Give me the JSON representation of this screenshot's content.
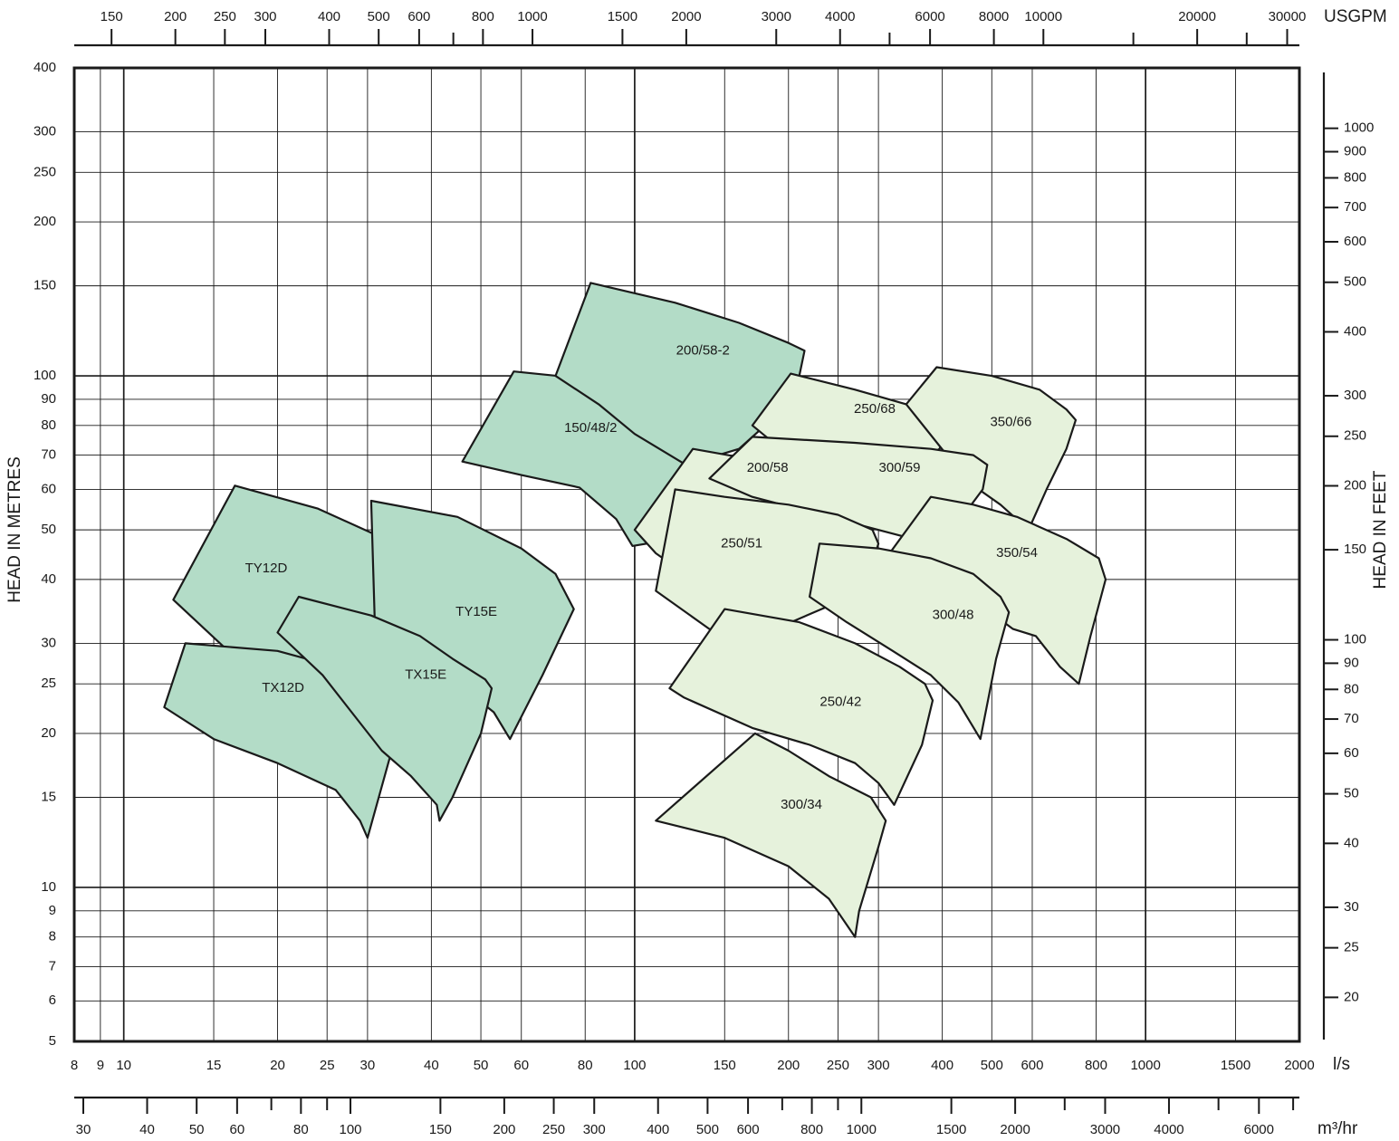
{
  "chart_data": {
    "type": "area",
    "title": "",
    "xlabel": "l/s",
    "ylabel": "HEAD IN METRES",
    "y2label": "HEAD IN FEET",
    "x_scale": "log",
    "y_scale": "log",
    "xlim": [
      8,
      2000
    ],
    "ylim": [
      5,
      400
    ],
    "grid": true,
    "x_ticks": [
      8,
      9,
      10,
      15,
      20,
      25,
      30,
      40,
      50,
      60,
      80,
      100,
      150,
      200,
      250,
      300,
      400,
      500,
      600,
      800,
      1000,
      1500,
      2000
    ],
    "y_ticks": [
      5,
      6,
      7,
      8,
      9,
      10,
      15,
      20,
      25,
      30,
      40,
      50,
      60,
      70,
      80,
      90,
      100,
      150,
      200,
      250,
      300,
      400
    ],
    "top_axis": {
      "unit": "USGPM",
      "ticks": [
        150,
        200,
        250,
        300,
        400,
        500,
        600,
        800,
        1000,
        1500,
        2000,
        3000,
        4000,
        6000,
        8000,
        10000,
        20000,
        30000
      ],
      "minor_ticks": [
        700,
        5000,
        15000,
        25000
      ]
    },
    "bottom_axis": {
      "unit": "m³/hr",
      "ticks": [
        30,
        40,
        50,
        60,
        80,
        100,
        150,
        200,
        250,
        300,
        400,
        500,
        600,
        800,
        1000,
        1500,
        2000,
        3000,
        4000,
        6000
      ],
      "minor_ticks": [
        70,
        90,
        700,
        900,
        2500,
        5000,
        7000
      ]
    },
    "right_axis": {
      "unit": "HEAD IN FEET",
      "ticks": [
        20,
        25,
        30,
        40,
        50,
        60,
        70,
        80,
        90,
        100,
        150,
        200,
        250,
        300,
        400,
        500,
        600,
        700,
        800,
        900,
        1000
      ]
    },
    "colors": {
      "dark_region": "#b3dcc7",
      "light_region": "#e6f2dc",
      "line": "#1a1a1a"
    },
    "series": [
      {
        "name": "TY12D",
        "shade": "dark",
        "label_at": [
          19,
          42
        ],
        "outline": [
          [
            16.5,
            61
          ],
          [
            24,
            55
          ],
          [
            31,
            49
          ],
          [
            36,
            45
          ],
          [
            38.5,
            42.5
          ],
          [
            32,
            33.5
          ],
          [
            29.5,
            30.5
          ],
          [
            25,
            29
          ],
          [
            18,
            26
          ],
          [
            12.5,
            36.5
          ]
        ]
      },
      {
        "name": "TY15E",
        "shade": "dark",
        "label_at": [
          49,
          34.5
        ],
        "outline": [
          [
            30.5,
            57
          ],
          [
            45,
            53
          ],
          [
            60,
            46
          ],
          [
            70,
            41
          ],
          [
            76,
            35
          ],
          [
            66,
            26
          ],
          [
            57,
            19.5
          ],
          [
            53,
            22
          ],
          [
            43,
            26
          ],
          [
            36,
            29
          ],
          [
            31,
            33
          ]
        ]
      },
      {
        "name": "TX12D",
        "shade": "dark",
        "label_at": [
          20.5,
          24.5
        ],
        "outline": [
          [
            13.2,
            30
          ],
          [
            20,
            29
          ],
          [
            26,
            27
          ],
          [
            31,
            25
          ],
          [
            34,
            23.5
          ],
          [
            36,
            21
          ],
          [
            33.2,
            18
          ],
          [
            30,
            12.5
          ],
          [
            29,
            13.5
          ],
          [
            26,
            15.5
          ],
          [
            20,
            17.5
          ],
          [
            15,
            19.5
          ],
          [
            12,
            22.5
          ]
        ]
      },
      {
        "name": "TX15E",
        "shade": "dark",
        "label_at": [
          39,
          26
        ],
        "outline": [
          [
            22,
            37
          ],
          [
            30.5,
            34
          ],
          [
            38,
            31
          ],
          [
            44,
            28
          ],
          [
            51,
            25.5
          ],
          [
            52.5,
            24.5
          ],
          [
            50,
            20
          ],
          [
            44,
            15
          ],
          [
            41.5,
            13.5
          ],
          [
            41,
            14.5
          ],
          [
            36.5,
            16.5
          ],
          [
            32,
            18.5
          ],
          [
            24.5,
            26
          ],
          [
            20,
            31.5
          ]
        ]
      },
      {
        "name": "150/48/2",
        "shade": "dark",
        "label_at": [
          82,
          79
        ],
        "outline": [
          [
            58,
            102
          ],
          [
            78,
            99
          ],
          [
            100,
            93
          ],
          [
            122,
            85
          ],
          [
            140,
            73
          ],
          [
            145,
            66
          ],
          [
            138,
            57
          ],
          [
            120,
            48
          ],
          [
            99,
            46.5
          ],
          [
            92,
            52.5
          ],
          [
            78,
            60.5
          ],
          [
            60,
            64
          ],
          [
            46,
            68
          ]
        ]
      },
      {
        "name": "200/58-2",
        "shade": "dark",
        "label_at": [
          136,
          112
        ],
        "outline": [
          [
            82,
            152
          ],
          [
            120,
            139
          ],
          [
            160,
            127
          ],
          [
            200,
            116
          ],
          [
            215,
            112
          ],
          [
            210,
            100
          ],
          [
            196,
            89
          ],
          [
            180,
            80
          ],
          [
            160,
            72
          ],
          [
            126,
            67
          ],
          [
            100,
            77
          ],
          [
            85,
            88
          ],
          [
            70,
            100
          ]
        ]
      },
      {
        "name": "250/68",
        "shade": "light",
        "label_at": [
          295,
          86
        ],
        "outline": [
          [
            202,
            101
          ],
          [
            270,
            94
          ],
          [
            340,
            88
          ],
          [
            405,
            83
          ],
          [
            410,
            78
          ],
          [
            395,
            72
          ],
          [
            350,
            66
          ],
          [
            280,
            63
          ],
          [
            200,
            70
          ],
          [
            170,
            80
          ]
        ]
      },
      {
        "name": "350/66",
        "shade": "light",
        "label_at": [
          545,
          81
        ],
        "outline": [
          [
            390,
            104
          ],
          [
            500,
            100
          ],
          [
            620,
            94
          ],
          [
            700,
            86
          ],
          [
            730,
            82
          ],
          [
            700,
            72
          ],
          [
            640,
            60
          ],
          [
            590,
            50
          ],
          [
            520,
            56
          ],
          [
            450,
            62
          ],
          [
            340,
            88
          ]
        ]
      },
      {
        "name": "200/58",
        "shade": "light",
        "label_at": [
          182,
          66
        ],
        "outline": [
          [
            130,
            72
          ],
          [
            165,
            69
          ],
          [
            200,
            67
          ],
          [
            248,
            63
          ],
          [
            260,
            60
          ],
          [
            248,
            52
          ],
          [
            200,
            42
          ],
          [
            160,
            38
          ],
          [
            130,
            40
          ],
          [
            110,
            45
          ],
          [
            100,
            50
          ]
        ]
      },
      {
        "name": "300/59",
        "shade": "light",
        "label_at": [
          330,
          66
        ],
        "outline": [
          [
            170,
            76
          ],
          [
            270,
            74
          ],
          [
            380,
            72
          ],
          [
            460,
            70
          ],
          [
            490,
            67
          ],
          [
            480,
            60
          ],
          [
            450,
            55
          ],
          [
            420,
            51
          ],
          [
            350,
            48
          ],
          [
            240,
            53
          ],
          [
            170,
            58
          ],
          [
            140,
            63
          ]
        ]
      },
      {
        "name": "250/51",
        "shade": "light",
        "label_at": [
          162,
          47
        ],
        "outline": [
          [
            120,
            60
          ],
          [
            150,
            58
          ],
          [
            200,
            56
          ],
          [
            250,
            53.5
          ],
          [
            292,
            50
          ],
          [
            300,
            47
          ],
          [
            296,
            45
          ],
          [
            280,
            40
          ],
          [
            240,
            35.5
          ],
          [
            175,
            31
          ],
          [
            140,
            32
          ],
          [
            110,
            38
          ]
        ]
      },
      {
        "name": "350/54",
        "shade": "light",
        "label_at": [
          560,
          45
        ],
        "outline": [
          [
            380,
            58
          ],
          [
            460,
            56
          ],
          [
            560,
            53
          ],
          [
            700,
            48
          ],
          [
            810,
            44
          ],
          [
            835,
            40
          ],
          [
            780,
            31
          ],
          [
            740,
            25
          ],
          [
            680,
            27
          ],
          [
            610,
            31
          ],
          [
            550,
            32
          ],
          [
            470,
            36
          ],
          [
            300,
            42
          ]
        ]
      },
      {
        "name": "300/48",
        "shade": "light",
        "label_at": [
          420,
          34
        ],
        "outline": [
          [
            230,
            47
          ],
          [
            300,
            46
          ],
          [
            380,
            44
          ],
          [
            460,
            41
          ],
          [
            520,
            37
          ],
          [
            540,
            34.5
          ],
          [
            510,
            28
          ],
          [
            475,
            19.5
          ],
          [
            430,
            23
          ],
          [
            380,
            26
          ],
          [
            320,
            29
          ],
          [
            260,
            33
          ],
          [
            220,
            37
          ]
        ]
      },
      {
        "name": "250/42",
        "shade": "light",
        "label_at": [
          253,
          23
        ],
        "outline": [
          [
            150,
            35
          ],
          [
            210,
            33
          ],
          [
            270,
            30
          ],
          [
            330,
            27
          ],
          [
            370,
            25
          ],
          [
            383,
            23.2
          ],
          [
            365,
            19
          ],
          [
            322,
            14.5
          ],
          [
            300,
            16
          ],
          [
            270,
            17.5
          ],
          [
            220,
            19
          ],
          [
            170,
            20.5
          ],
          [
            125,
            23.5
          ],
          [
            117,
            24.5
          ]
        ]
      },
      {
        "name": "300/34",
        "shade": "light",
        "label_at": [
          212,
          14.5
        ],
        "outline": [
          [
            172,
            20
          ],
          [
            200,
            18.5
          ],
          [
            240,
            16.5
          ],
          [
            290,
            15
          ],
          [
            310,
            13.5
          ],
          [
            300,
            12
          ],
          [
            275,
            9
          ],
          [
            270,
            8
          ],
          [
            240,
            9.5
          ],
          [
            200,
            11
          ],
          [
            150,
            12.5
          ],
          [
            110,
            13.5
          ]
        ]
      }
    ]
  }
}
